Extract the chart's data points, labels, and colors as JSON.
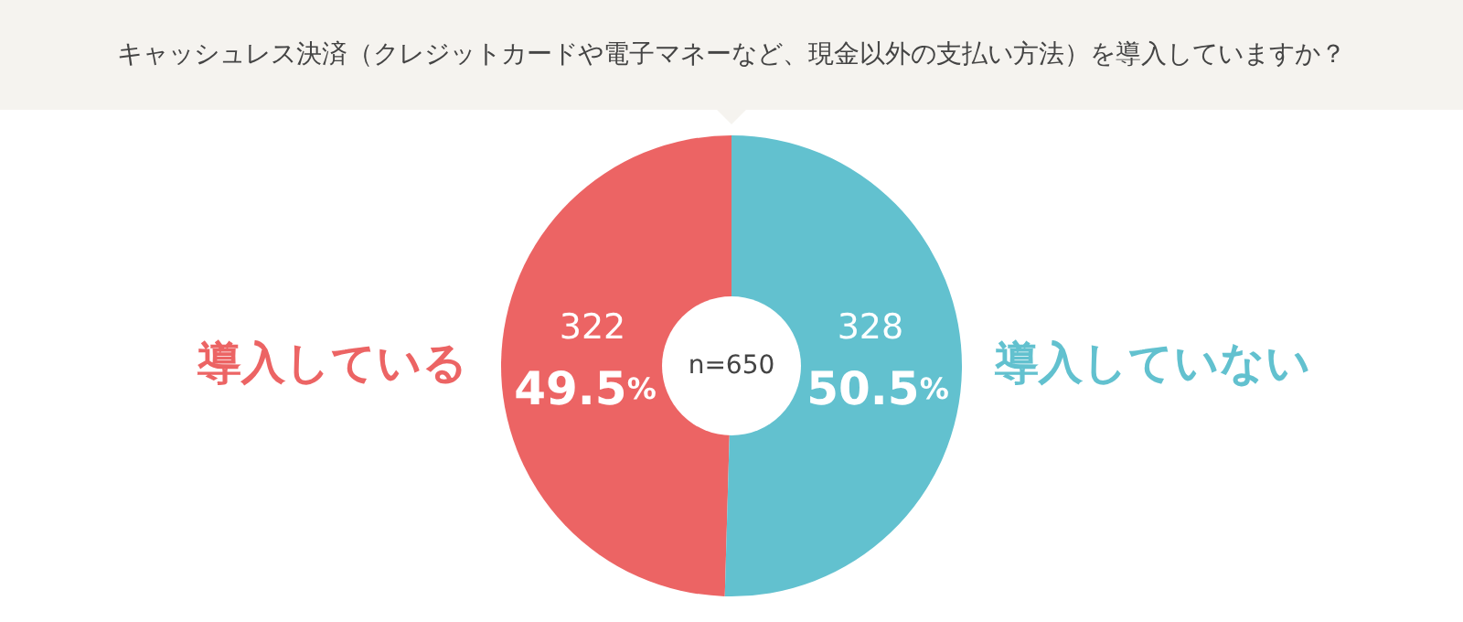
{
  "chart_data": {
    "type": "donut",
    "title": "キャッシュレス決済（クレジットカードや電子マネーなど、現金以外の支払い方法）を導入していますか？",
    "categories": [
      "導入している",
      "導入していない"
    ],
    "values": [
      322,
      328
    ],
    "colors": [
      "#ec6464",
      "#62c1cf"
    ],
    "data_labels": true,
    "annotations": [
      {
        "text": "49.5%",
        "x": "導入している"
      },
      {
        "text": "50.5%",
        "x": "導入していない"
      },
      "n=650"
    ]
  }
}
